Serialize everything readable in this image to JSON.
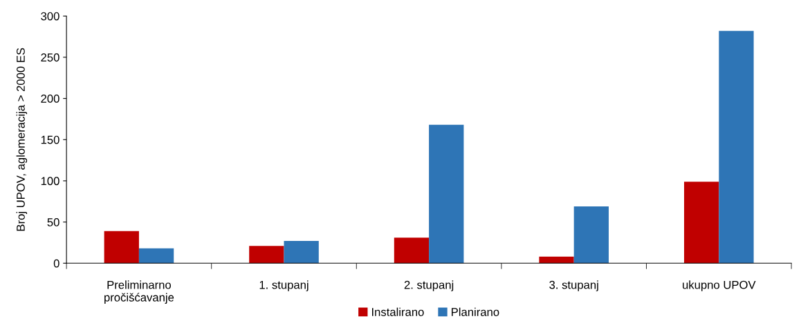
{
  "chart_data": {
    "type": "bar",
    "ylabel": "Broj UPOV, aglomeracija > 2000 ES",
    "categories": [
      "Preliminarno\npročišćavanje",
      "1. stupanj",
      "2. stupanj",
      "3. stupanj",
      "ukupno UPOV"
    ],
    "series": [
      {
        "name": "Instalirano",
        "color": "#c00000",
        "values": [
          39,
          21,
          31,
          8,
          99
        ]
      },
      {
        "name": "Planirano",
        "color": "#2e75b6",
        "values": [
          18,
          27,
          168,
          69,
          282
        ]
      }
    ],
    "ylim": [
      0,
      300
    ],
    "yticks": [
      0,
      50,
      100,
      150,
      200,
      250,
      300
    ],
    "grid": false,
    "legend": "bottom"
  }
}
